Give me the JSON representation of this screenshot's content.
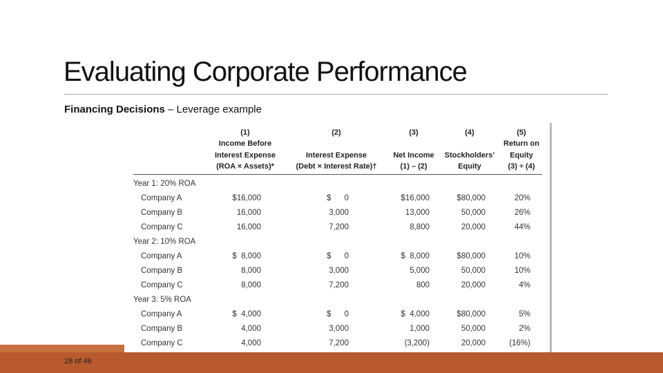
{
  "slide": {
    "title": "Evaluating Corporate Performance",
    "subtitle_bold": "Financing Decisions",
    "subtitle_rest": " – Leverage example",
    "page": "28 of 46"
  },
  "table": {
    "headers": [
      {
        "number": "(1)",
        "lines": [
          "Income Before",
          "Interest Expense",
          "(ROA × Assets)*"
        ]
      },
      {
        "number": "(2)",
        "lines": [
          "Interest Expense",
          "(Debt × Interest Rate)†"
        ]
      },
      {
        "number": "(3)",
        "lines": [
          "Net Income",
          "(1) – (2)"
        ]
      },
      {
        "number": "(4)",
        "lines": [
          "Stockholders’",
          "Equity"
        ]
      },
      {
        "number": "(5)",
        "lines": [
          "Return on",
          "Equity",
          "(3) ÷ (4)"
        ]
      }
    ],
    "groups": [
      {
        "label": "Year 1: 20% ROA",
        "rows": [
          [
            "Company A",
            "$16,000",
            "$      0",
            "$16,000",
            "$80,000",
            "20%"
          ],
          [
            "Company B",
            "16,000",
            "3,000",
            "13,000",
            "50,000",
            "26%"
          ],
          [
            "Company C",
            "16,000",
            "7,200",
            "8,800",
            "20,000",
            "44%"
          ]
        ]
      },
      {
        "label": "Year 2: 10% ROA",
        "rows": [
          [
            "Company A",
            "$  8,000",
            "$      0",
            "$  8,000",
            "$80,000",
            "10%"
          ],
          [
            "Company B",
            "8,000",
            "3,000",
            "5,000",
            "50,000",
            "10%"
          ],
          [
            "Company C",
            "8,000",
            "7,200",
            "800",
            "20,000",
            "4%"
          ]
        ]
      },
      {
        "label": "Year 3: 5% ROA",
        "rows": [
          [
            "Company A",
            "$  4,000",
            "$      0",
            "$  4,000",
            "$80,000",
            "5%"
          ],
          [
            "Company B",
            "4,000",
            "3,000",
            "1,000",
            "50,000",
            "2%"
          ],
          [
            "Company C",
            "4,000",
            "7,200",
            "(3,200)",
            "20,000",
            "(16%)"
          ]
        ]
      }
    ]
  }
}
